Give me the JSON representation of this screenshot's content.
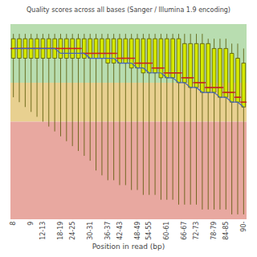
{
  "chart_data": {
    "type": "box",
    "title": "Quality scores across all bases (Sanger / Illumina 1.9 encoding)",
    "xlabel": "Position in read (bp)",
    "categories": [
      "8",
      null,
      null,
      "9",
      null,
      "12-13",
      null,
      null,
      "18-19",
      null,
      "24-25",
      null,
      null,
      "30-31",
      null,
      null,
      "36-37",
      null,
      "42-43",
      null,
      null,
      "48-49",
      null,
      "54-55",
      null,
      null,
      "60-61",
      null,
      null,
      "66-67",
      null,
      "72-73",
      null,
      null,
      "78-79",
      null,
      "84-85",
      null,
      null,
      "90-"
    ],
    "ylim": [
      0,
      40
    ],
    "tick_labels": "x",
    "grid": false,
    "bands": [
      {
        "low": 28,
        "high": 40,
        "color": "#b8ddb0"
      },
      {
        "low": 20,
        "high": 28,
        "color": "#e8d090"
      },
      {
        "low": 0,
        "high": 20,
        "color": "#e8a8a0"
      }
    ],
    "series": [
      {
        "type": "box",
        "color": "#d4e800",
        "edge_color": "#555500",
        "median_color": "#cc2222",
        "q1": [
          33,
          33,
          33,
          33,
          33,
          33,
          33,
          33,
          33,
          33,
          33,
          33,
          33,
          33,
          33,
          33,
          32,
          32,
          32,
          32,
          31,
          31,
          30,
          30,
          30,
          29,
          29,
          29,
          28,
          28,
          27,
          27,
          26,
          26,
          26,
          25,
          25,
          24,
          24,
          23
        ],
        "q3": [
          37,
          37,
          37,
          37,
          37,
          37,
          37,
          37,
          37,
          37,
          37,
          37,
          37,
          37,
          37,
          37,
          37,
          37,
          37,
          37,
          37,
          37,
          37,
          37,
          37,
          37,
          37,
          37,
          37,
          36,
          36,
          36,
          36,
          36,
          35,
          35,
          35,
          34,
          33,
          32
        ],
        "median": [
          35,
          35,
          35,
          35,
          35,
          35,
          35,
          35,
          35,
          35,
          35,
          35,
          34,
          34,
          34,
          34,
          34,
          34,
          33,
          33,
          33,
          32,
          32,
          32,
          31,
          31,
          30,
          30,
          30,
          29,
          29,
          28,
          28,
          27,
          27,
          27,
          26,
          26,
          25,
          24
        ],
        "whisker_low": [
          25,
          24,
          23,
          22,
          21,
          20,
          19,
          18,
          17,
          16,
          15,
          14,
          13,
          12,
          10,
          9,
          8,
          8,
          7,
          7,
          6,
          6,
          5,
          5,
          5,
          4,
          4,
          4,
          3,
          3,
          3,
          3,
          2,
          2,
          2,
          2,
          2,
          1,
          1,
          1
        ],
        "whisker_high": [
          38,
          38,
          38,
          38,
          38,
          38,
          38,
          38,
          38,
          38,
          38,
          38,
          38,
          38,
          38,
          38,
          38,
          38,
          38,
          38,
          38,
          38,
          38,
          38,
          38,
          38,
          38,
          38,
          38,
          38,
          38,
          38,
          38,
          37,
          37,
          37,
          37,
          36,
          36,
          35
        ]
      },
      {
        "type": "line",
        "color": "#4466bb",
        "values": [
          35,
          35,
          35,
          35,
          35,
          35,
          35,
          35,
          34,
          34,
          34,
          34,
          34,
          33,
          33,
          33,
          33,
          33,
          32,
          32,
          32,
          31,
          31,
          30,
          30,
          30,
          29,
          29,
          28,
          28,
          27,
          27,
          26,
          26,
          26,
          25,
          25,
          24,
          24,
          23
        ]
      }
    ]
  }
}
